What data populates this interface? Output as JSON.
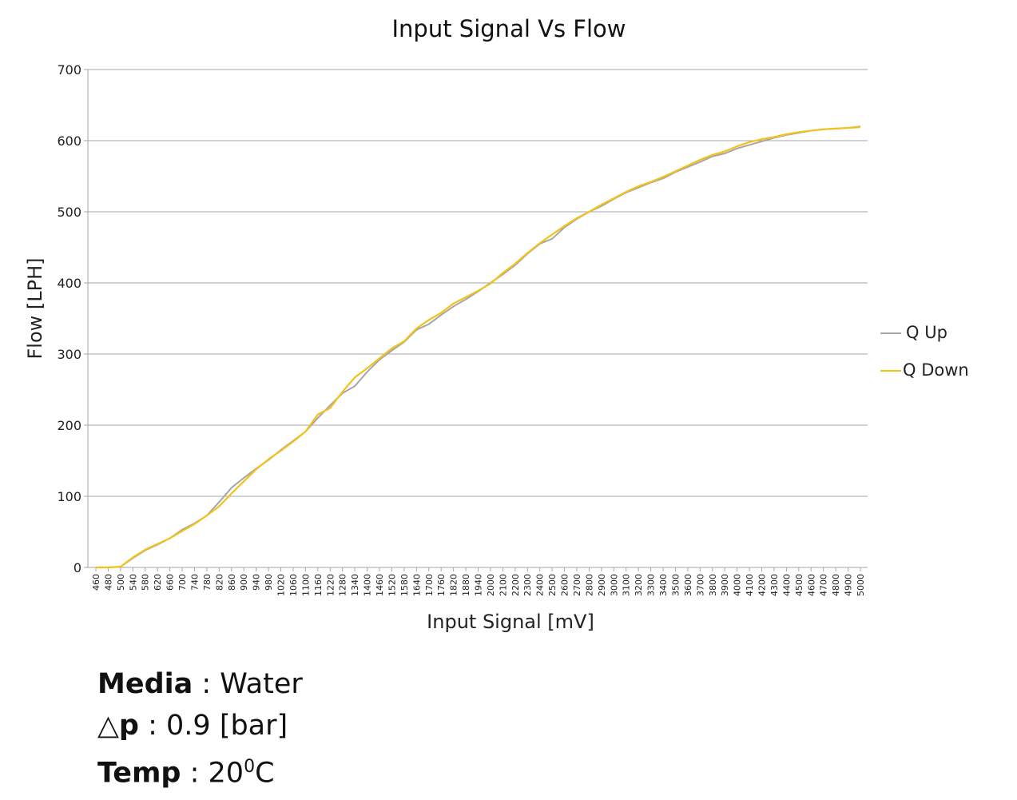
{
  "chart_data": {
    "type": "line",
    "title": "Input Signal Vs Flow",
    "xlabel": "Input Signal [mV]",
    "ylabel": "Flow [LPH]",
    "ylim": [
      0,
      700
    ],
    "yticks": [
      0,
      100,
      200,
      300,
      400,
      500,
      600,
      700
    ],
    "grid": true,
    "legend": "right",
    "x": [
      460,
      480,
      500,
      540,
      580,
      620,
      660,
      700,
      740,
      780,
      820,
      860,
      900,
      940,
      980,
      1020,
      1060,
      1100,
      1160,
      1220,
      1280,
      1340,
      1400,
      1460,
      1520,
      1580,
      1640,
      1700,
      1760,
      1820,
      1880,
      1940,
      2000,
      2100,
      2200,
      2300,
      2400,
      2500,
      2600,
      2700,
      2800,
      2900,
      3000,
      3100,
      3200,
      3300,
      3400,
      3500,
      3600,
      3700,
      3800,
      3900,
      4000,
      4100,
      4200,
      4300,
      4400,
      4500,
      4600,
      4700,
      4800,
      4900,
      5000
    ],
    "series": [
      {
        "name": "Q Up",
        "color": "#a6a6a6",
        "values": [
          0,
          0,
          1,
          13,
          24,
          32,
          41,
          53,
          62,
          73,
          92,
          112,
          126,
          139,
          151,
          165,
          178,
          191,
          210,
          228,
          245,
          255,
          275,
          292,
          305,
          317,
          334,
          342,
          355,
          367,
          377,
          388,
          400,
          412,
          425,
          441,
          455,
          462,
          478,
          490,
          500,
          508,
          518,
          527,
          534,
          541,
          547,
          556,
          563,
          570,
          578,
          582,
          589,
          594,
          599,
          604,
          608,
          611,
          614,
          616,
          617,
          618,
          620
        ]
      },
      {
        "name": "Q Down",
        "color": "#f2c21b",
        "values": [
          0,
          0,
          1,
          14,
          25,
          33,
          41,
          51,
          61,
          73,
          86,
          104,
          121,
          138,
          152,
          164,
          177,
          191,
          215,
          224,
          247,
          267,
          280,
          294,
          308,
          318,
          336,
          348,
          358,
          371,
          380,
          389,
          399,
          414,
          427,
          442,
          456,
          468,
          480,
          491,
          500,
          510,
          519,
          528,
          536,
          542,
          549,
          557,
          565,
          573,
          580,
          585,
          592,
          598,
          602,
          605,
          609,
          612,
          614,
          616,
          617,
          618,
          619
        ]
      }
    ]
  },
  "notes": {
    "media_key": "Media",
    "media_value": " : Water",
    "dp_key": "△p",
    "dp_value": " : 0.9 [bar]",
    "temp_key": "Temp",
    "temp_value": " : 20",
    "temp_sup": "0",
    "temp_unit": "C"
  }
}
